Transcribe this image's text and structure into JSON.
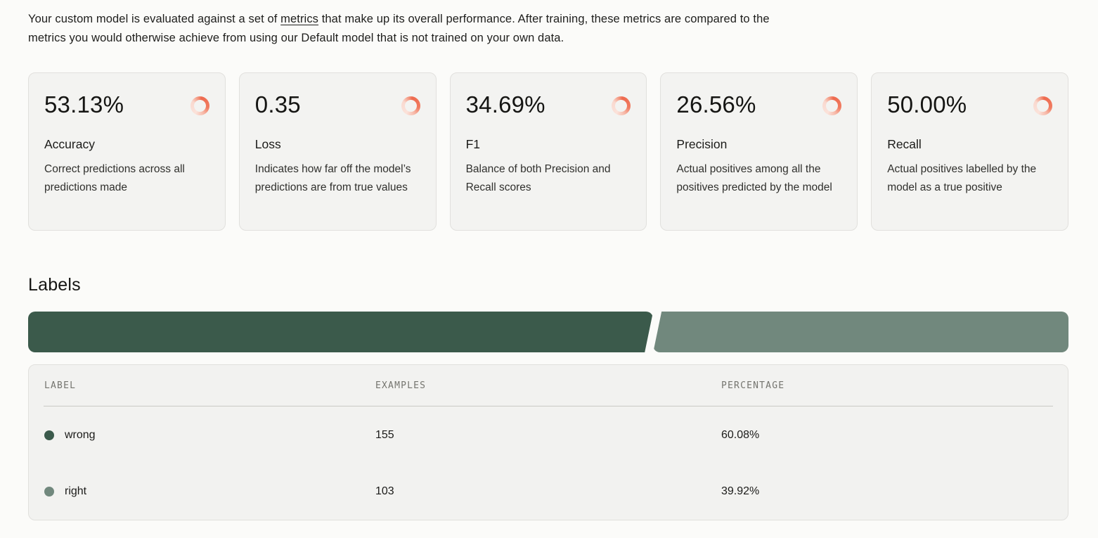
{
  "intro": {
    "before_link": "Your custom model is evaluated against a set of ",
    "link_text": "metrics",
    "after_link": " that make up its overall performance. After training, these metrics are compared to the metrics you would otherwise achieve from using our Default model that is not trained on your own data."
  },
  "metric_cards": [
    {
      "value": "53.13%",
      "label": "Accuracy",
      "description": "Correct predictions across all predictions made"
    },
    {
      "value": "0.35",
      "label": "Loss",
      "description": "Indicates how far off the model’s predictions are from true values"
    },
    {
      "value": "34.69%",
      "label": "F1",
      "description": "Balance of both Precision and Recall scores"
    },
    {
      "value": "26.56%",
      "label": "Precision",
      "description": "Actual positives among all the positives predicted by the model"
    },
    {
      "value": "50.00%",
      "label": "Recall",
      "description": "Actual positives labelled by the model as a true positive"
    }
  ],
  "labels_section": {
    "title": "Labels",
    "headers": [
      "LABEL",
      "EXAMPLES",
      "PERCENTAGE"
    ],
    "rows": [
      {
        "label": "wrong",
        "examples": "155",
        "percentage": "60.08%",
        "color": "#3b5a4b"
      },
      {
        "label": "right",
        "examples": "103",
        "percentage": "39.92%",
        "color": "#71887d"
      }
    ]
  },
  "chart_data": {
    "type": "bar",
    "variant": "horizontal-stacked",
    "title": "Labels",
    "categories": [
      "wrong",
      "right"
    ],
    "values": [
      60.08,
      39.92
    ],
    "examples": [
      155,
      103
    ],
    "colors": [
      "#3b5a4b",
      "#71887d"
    ],
    "xlim": [
      0,
      100
    ],
    "legend_position": "table-below"
  },
  "colors": {
    "accent_coral": "#ee6a4f",
    "coral_light": "#fbe2da",
    "green_dark": "#3b5a4b",
    "green_sage": "#71887d",
    "card_background": "#f3f3f1",
    "page_background": "#fbfbf9"
  }
}
